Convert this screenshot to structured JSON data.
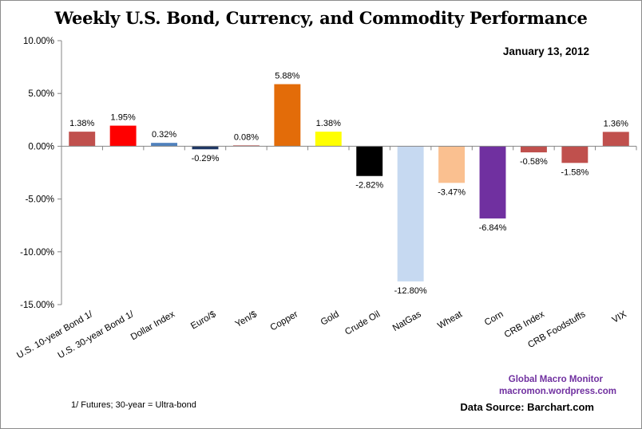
{
  "chart_data": {
    "type": "bar",
    "title": "Weekly U.S. Bond, Currency, and Commodity Performance",
    "subtitle": "January 13, 2012",
    "xlabel": "",
    "ylabel": "",
    "ylim": [
      -15,
      10
    ],
    "yticks": [
      10,
      5,
      0,
      -5,
      -10,
      -15
    ],
    "ytick_labels": [
      "10.00%",
      "5.00%",
      "0.00%",
      "-5.00%",
      "-10.00%",
      "-15.00%"
    ],
    "grid": false,
    "legend": "none",
    "categories": [
      "U.S. 10-year Bond 1/",
      "U.S. 30-year Bond 1/",
      "Dollar Index",
      "Euro/$",
      "Yen/$",
      "Copper",
      "Gold",
      "Crude Oil",
      "NatGas",
      "Wheat",
      "Corn",
      "CRB Index",
      "CRB Foodstuffs",
      "VIX"
    ],
    "values": [
      1.38,
      1.95,
      0.32,
      -0.29,
      0.08,
      5.88,
      1.38,
      -2.82,
      -12.8,
      -3.47,
      -6.84,
      -0.58,
      -1.58,
      1.36
    ],
    "data_labels": [
      "1.38%",
      "1.95%",
      "0.32%",
      "-0.29%",
      "0.08%",
      "5.88%",
      "1.38%",
      "-2.82%",
      "-12.80%",
      "-3.47%",
      "-6.84%",
      "-0.58%",
      "-1.58%",
      "1.36%"
    ],
    "colors": [
      "#c0504d",
      "#ff0000",
      "#4f81bd",
      "#1f3864",
      "#c0504d",
      "#e36c09",
      "#ffff00",
      "#000000",
      "#c6d9f1",
      "#fac090",
      "#7030a0",
      "#c0504d",
      "#c0504d",
      "#c0504d"
    ]
  },
  "annotations": {
    "footnote": "1/ Futures; 30-year = Ultra-bond",
    "credit_name": "Global Macro Monitor",
    "credit_url": "macromon.wordpress.com",
    "data_source": "Data Source:  Barchart.com"
  },
  "colors": {
    "credit": "#7030a0",
    "axis": "#868686"
  }
}
